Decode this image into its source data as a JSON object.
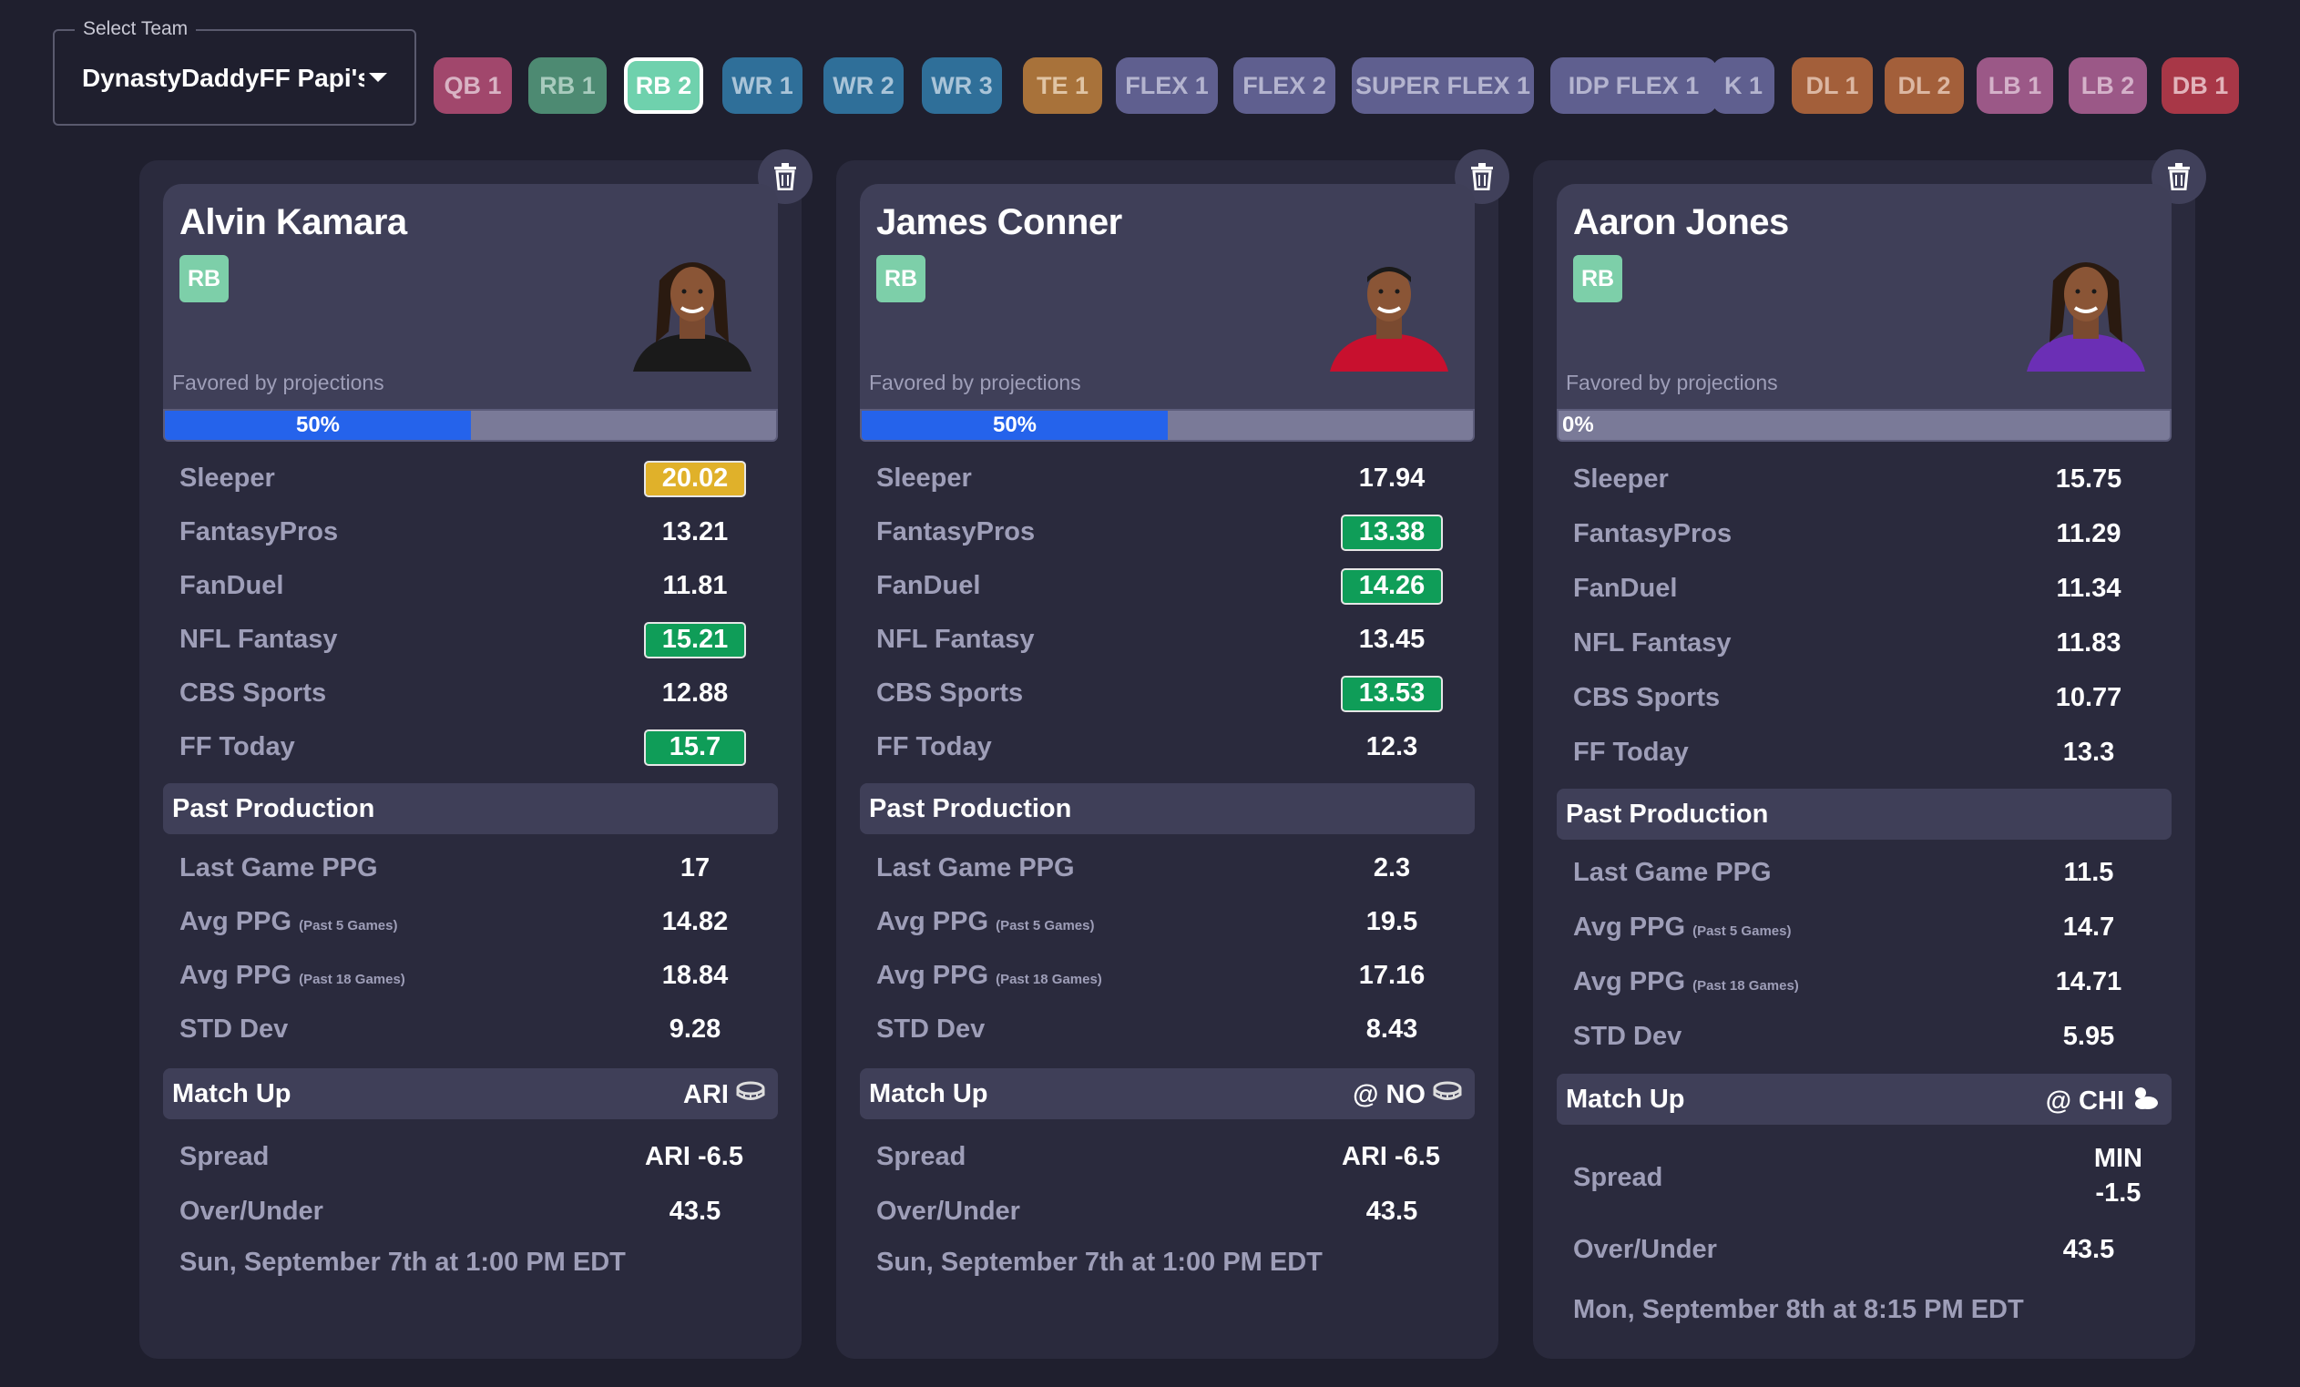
{
  "team_select": {
    "legend": "Select Team",
    "value": "DynastyDaddyFF Papi's..."
  },
  "chips": [
    {
      "label": "QB 1",
      "color": "#a1476c",
      "text_color": "#d9b3c4"
    },
    {
      "label": "RB 1",
      "color": "#4d8a72",
      "text_color": "#a8cbbd"
    },
    {
      "label": "RB 2",
      "color": "#6fd1ad",
      "text_color": "#ffffff",
      "active": true
    },
    {
      "label": "WR 1",
      "color": "#2f6f99",
      "text_color": "#a9c4d8"
    },
    {
      "label": "WR 2",
      "color": "#2f6f99",
      "text_color": "#a9c4d8"
    },
    {
      "label": "WR 3",
      "color": "#2f6f99",
      "text_color": "#a9c4d8"
    },
    {
      "label": "TE 1",
      "color": "#a8723a",
      "text_color": "#e0c4a4"
    },
    {
      "label": "FLEX 1",
      "color": "#5f5f8f",
      "text_color": "#b4b4cf"
    },
    {
      "label": "FLEX 2",
      "color": "#5f5f8f",
      "text_color": "#b4b4cf"
    },
    {
      "label": "SUPER FLEX 1",
      "color": "#5f5f8f",
      "text_color": "#b4b4cf"
    },
    {
      "label": "IDP FLEX 1",
      "color": "#5f5f8f",
      "text_color": "#b4b4cf"
    },
    {
      "label": "K 1",
      "color": "#5f5f8f",
      "text_color": "#b4b4cf"
    },
    {
      "label": "DL 1",
      "color": "#a35f3a",
      "text_color": "#dcb7a2"
    },
    {
      "label": "DL 2",
      "color": "#a35f3a",
      "text_color": "#dcb7a2"
    },
    {
      "label": "LB 1",
      "color": "#9b5887",
      "text_color": "#d4b1c9"
    },
    {
      "label": "LB 2",
      "color": "#9b5887",
      "text_color": "#d4b1c9"
    },
    {
      "label": "DB 1",
      "color": "#a83747",
      "text_color": "#e2b3ba"
    }
  ],
  "cards": [
    {
      "name": "Alvin Kamara",
      "position": "RB",
      "jersey_color": "#1a1a1a",
      "hair": "locs",
      "favored_label": "Favored by projections",
      "favored_pct": 50,
      "favored_text": "50%",
      "projections": [
        {
          "label": "Sleeper",
          "value": "20.02",
          "highlight": "gold"
        },
        {
          "label": "FantasyPros",
          "value": "13.21",
          "highlight": ""
        },
        {
          "label": "FanDuel",
          "value": "11.81",
          "highlight": ""
        },
        {
          "label": "NFL Fantasy",
          "value": "15.21",
          "highlight": "green"
        },
        {
          "label": "CBS Sports",
          "value": "12.88",
          "highlight": ""
        },
        {
          "label": "FF Today",
          "value": "15.7",
          "highlight": "green"
        }
      ],
      "past_title": "Past Production",
      "past": [
        {
          "label": "Last Game PPG",
          "sub": "",
          "value": "17"
        },
        {
          "label": "Avg PPG",
          "sub": "(Past 5 Games)",
          "value": "14.82"
        },
        {
          "label": "Avg PPG",
          "sub": "(Past 18 Games)",
          "value": "18.84"
        },
        {
          "label": "STD Dev",
          "sub": "",
          "value": "9.28"
        }
      ],
      "matchup_title": "Match Up",
      "opponent": "ARI",
      "weather_icon": "stadium-icon",
      "spread_label": "Spread",
      "spread": "ARI -6.5",
      "ou_label": "Over/Under",
      "over_under": "43.5",
      "game_time": "Sun, September 7th at 1:00 PM EDT"
    },
    {
      "name": "James Conner",
      "position": "RB",
      "jersey_color": "#c8102e",
      "hair": "short",
      "favored_label": "Favored by projections",
      "favored_pct": 50,
      "favored_text": "50%",
      "projections": [
        {
          "label": "Sleeper",
          "value": "17.94",
          "highlight": ""
        },
        {
          "label": "FantasyPros",
          "value": "13.38",
          "highlight": "green"
        },
        {
          "label": "FanDuel",
          "value": "14.26",
          "highlight": "green"
        },
        {
          "label": "NFL Fantasy",
          "value": "13.45",
          "highlight": ""
        },
        {
          "label": "CBS Sports",
          "value": "13.53",
          "highlight": "green"
        },
        {
          "label": "FF Today",
          "value": "12.3",
          "highlight": ""
        }
      ],
      "past_title": "Past Production",
      "past": [
        {
          "label": "Last Game PPG",
          "sub": "",
          "value": "2.3"
        },
        {
          "label": "Avg PPG",
          "sub": "(Past 5 Games)",
          "value": "19.5"
        },
        {
          "label": "Avg PPG",
          "sub": "(Past 18 Games)",
          "value": "17.16"
        },
        {
          "label": "STD Dev",
          "sub": "",
          "value": "8.43"
        }
      ],
      "matchup_title": "Match Up",
      "opponent": "@ NO",
      "weather_icon": "stadium-icon",
      "spread_label": "Spread",
      "spread": "ARI -6.5",
      "ou_label": "Over/Under",
      "over_under": "43.5",
      "game_time": "Sun, September 7th at 1:00 PM EDT"
    },
    {
      "name": "Aaron Jones",
      "position": "RB",
      "jersey_color": "#6b2fb5",
      "hair": "locs",
      "favored_label": "Favored by projections",
      "favored_pct": 0,
      "favored_text": "0%",
      "projections": [
        {
          "label": "Sleeper",
          "value": "15.75",
          "highlight": ""
        },
        {
          "label": "FantasyPros",
          "value": "11.29",
          "highlight": ""
        },
        {
          "label": "FanDuel",
          "value": "11.34",
          "highlight": ""
        },
        {
          "label": "NFL Fantasy",
          "value": "11.83",
          "highlight": ""
        },
        {
          "label": "CBS Sports",
          "value": "10.77",
          "highlight": ""
        },
        {
          "label": "FF Today",
          "value": "13.3",
          "highlight": ""
        }
      ],
      "past_title": "Past Production",
      "past": [
        {
          "label": "Last Game PPG",
          "sub": "",
          "value": "11.5"
        },
        {
          "label": "Avg PPG",
          "sub": "(Past 5 Games)",
          "value": "14.7"
        },
        {
          "label": "Avg PPG",
          "sub": "(Past 18 Games)",
          "value": "14.71"
        },
        {
          "label": "STD Dev",
          "sub": "",
          "value": "5.95"
        }
      ],
      "matchup_title": "Match Up",
      "opponent": "@ CHI",
      "weather_icon": "partly-cloudy-icon",
      "spread_label": "Spread",
      "spread": "MIN -1.5",
      "spread_lines": [
        "MIN",
        "-1.5"
      ],
      "ou_label": "Over/Under",
      "over_under": "43.5",
      "game_time": "Mon, September 8th at 8:15 PM EDT"
    }
  ]
}
